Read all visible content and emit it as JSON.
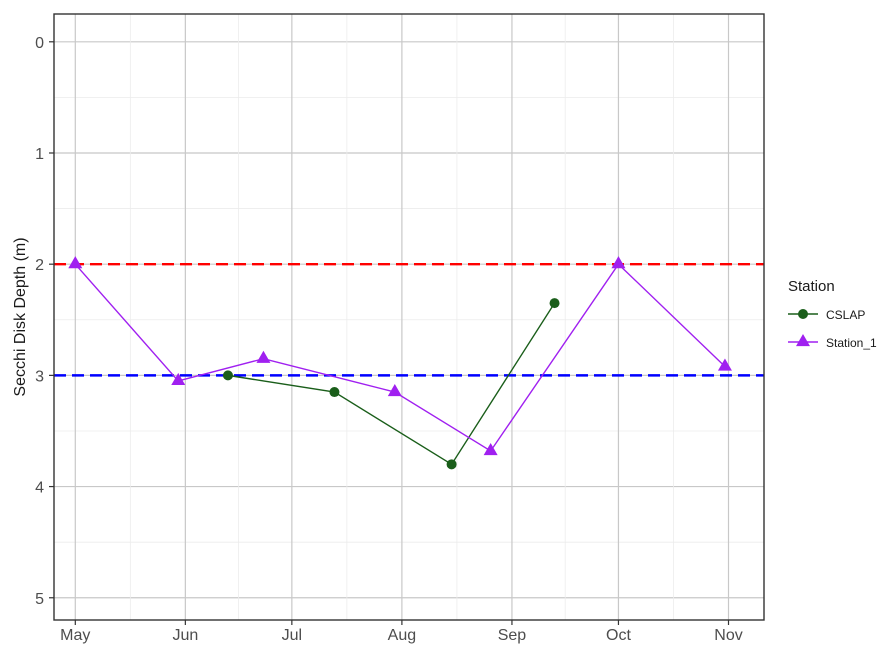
{
  "chart_data": {
    "type": "line",
    "title": "",
    "xlabel": "",
    "ylabel": "Secchi Disk Depth (m)",
    "y_reversed": true,
    "ylim": [
      5.2,
      -0.25
    ],
    "xlim": [
      "2022-04-25",
      "2022-11-11"
    ],
    "x_ticks": [
      {
        "date": "2022-05-01",
        "label": "May"
      },
      {
        "date": "2022-06-01",
        "label": "Jun"
      },
      {
        "date": "2022-07-01",
        "label": "Jul"
      },
      {
        "date": "2022-08-01",
        "label": "Aug"
      },
      {
        "date": "2022-09-01",
        "label": "Sep"
      },
      {
        "date": "2022-10-01",
        "label": "Oct"
      },
      {
        "date": "2022-11-01",
        "label": "Nov"
      }
    ],
    "y_ticks": [
      0,
      1,
      2,
      3,
      4,
      5
    ],
    "grid": true,
    "legend": {
      "title": "Station",
      "position": "right"
    },
    "reference_lines": [
      {
        "y": 2,
        "color": "#ff0000",
        "style": "dashed"
      },
      {
        "y": 3,
        "color": "#0000ff",
        "style": "dashed"
      }
    ],
    "series": [
      {
        "name": "CSLAP",
        "color": "#1a5e1a",
        "marker": "circle",
        "points": [
          {
            "x": "2022-06-13",
            "y": 3.0
          },
          {
            "x": "2022-07-13",
            "y": 3.15
          },
          {
            "x": "2022-08-15",
            "y": 3.8
          },
          {
            "x": "2022-09-13",
            "y": 2.35
          }
        ]
      },
      {
        "name": "Station_1",
        "color": "#a020f0",
        "marker": "triangle",
        "points": [
          {
            "x": "2022-05-01",
            "y": 2.0
          },
          {
            "x": "2022-05-30",
            "y": 3.05
          },
          {
            "x": "2022-06-23",
            "y": 2.85
          },
          {
            "x": "2022-07-30",
            "y": 3.15
          },
          {
            "x": "2022-08-26",
            "y": 3.68
          },
          {
            "x": "2022-10-01",
            "y": 2.0
          },
          {
            "x": "2022-10-31",
            "y": 2.92
          }
        ]
      }
    ]
  }
}
